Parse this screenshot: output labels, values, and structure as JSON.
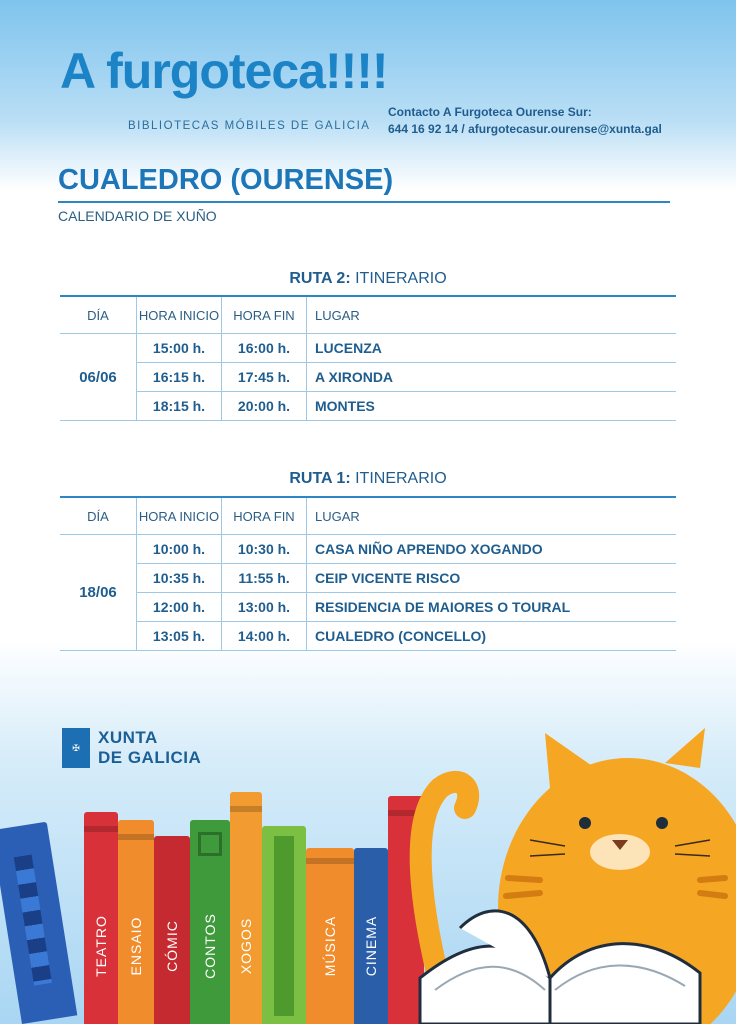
{
  "header": {
    "logo": "A furgoteca!!!!",
    "logo_subtitle": "BIBLIOTECAS MÓBILES DE GALICIA",
    "contact_line1": "Contacto A Furgoteca Ourense Sur:",
    "contact_line2": "644 16 92 14 / afurgotecasur.ourense@xunta.gal"
  },
  "place": "CUALEDRO (OURENSE)",
  "calendar": "CALENDARIO DE XUÑO",
  "columns": {
    "day": "DÍA",
    "start": "HORA INICIO",
    "end": "HORA FIN",
    "location": "LUGAR"
  },
  "route2": {
    "title_bold": "RUTA 2:",
    "title_rest": " ITINERARIO",
    "day": "06/06",
    "rows": [
      {
        "start": "15:00 h.",
        "end": "16:00 h.",
        "location": "LUCENZA"
      },
      {
        "start": "16:15 h.",
        "end": "17:45 h.",
        "location": "A XIRONDA"
      },
      {
        "start": "18:15 h.",
        "end": "20:00 h.",
        "location": "MONTES"
      }
    ]
  },
  "route1": {
    "title_bold": "RUTA 1:",
    "title_rest": " ITINERARIO",
    "day": "18/06",
    "rows": [
      {
        "start": "10:00 h.",
        "end": "10:30 h.",
        "location": "CASA NIÑO APRENDO XOGANDO"
      },
      {
        "start": "10:35 h.",
        "end": "11:55 h.",
        "location": "CEIP VICENTE RISCO"
      },
      {
        "start": "12:00 h.",
        "end": "13:00 h.",
        "location": "RESIDENCIA DE MAIORES O TOURAL"
      },
      {
        "start": "13:05 h.",
        "end": "14:00 h.",
        "location": "CUALEDRO (CONCELLO)"
      }
    ]
  },
  "xunta": {
    "line1": "XUNTA",
    "line2": "DE GALICIA"
  },
  "books": [
    "TEATRO",
    "ENSAIO",
    "CÓMIC",
    "CONTOS",
    "XOGOS",
    "MÚSICA",
    "CINEMA"
  ],
  "colors": {
    "primary": "#1c83c6",
    "cat": "#f5a623"
  }
}
